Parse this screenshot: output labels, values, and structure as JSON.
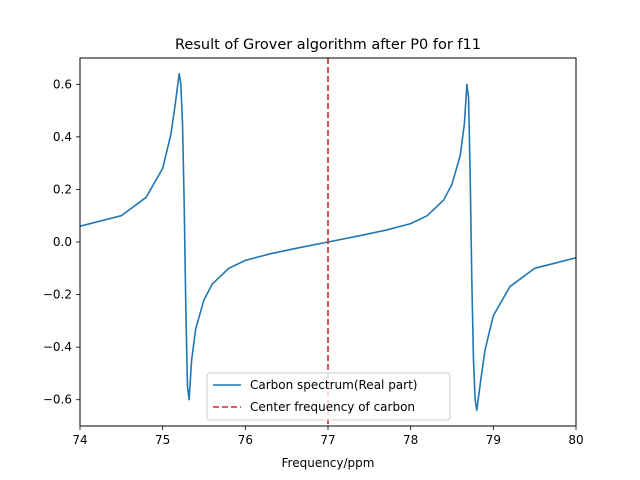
{
  "chart_data": {
    "type": "line",
    "title": "Result of Grover algorithm after P0 for f11",
    "xlabel": "Frequency/ppm",
    "ylabel": "",
    "xlim": [
      74,
      80
    ],
    "ylim": [
      -0.7,
      0.7
    ],
    "x_ticks": [
      74,
      75,
      76,
      77,
      78,
      79,
      80
    ],
    "y_ticks": [
      -0.6,
      -0.4,
      -0.2,
      0.0,
      0.2,
      0.4,
      0.6
    ],
    "grid": false,
    "legend_position": "lower center",
    "series": [
      {
        "name": "Carbon spectrum(Real part)",
        "color": "#1f77b4",
        "style": "solid",
        "x": [
          74.0,
          74.5,
          74.8,
          75.0,
          75.1,
          75.15,
          75.2,
          75.22,
          75.24,
          75.26,
          75.28,
          75.3,
          75.32,
          75.35,
          75.4,
          75.5,
          75.6,
          75.8,
          76.0,
          76.3,
          76.6,
          77.0,
          77.4,
          77.7,
          78.0,
          78.2,
          78.4,
          78.5,
          78.6,
          78.65,
          78.68,
          78.7,
          78.72,
          78.74,
          78.76,
          78.78,
          78.8,
          78.85,
          78.9,
          79.0,
          79.2,
          79.5,
          80.0
        ],
        "y": [
          0.06,
          0.1,
          0.17,
          0.28,
          0.41,
          0.52,
          0.64,
          0.6,
          0.45,
          0.15,
          -0.25,
          -0.55,
          -0.6,
          -0.45,
          -0.33,
          -0.22,
          -0.16,
          -0.1,
          -0.07,
          -0.045,
          -0.025,
          0.0,
          0.025,
          0.045,
          0.07,
          0.1,
          0.16,
          0.22,
          0.33,
          0.45,
          0.6,
          0.55,
          0.25,
          -0.15,
          -0.45,
          -0.6,
          -0.64,
          -0.52,
          -0.41,
          -0.28,
          -0.17,
          -0.1,
          -0.06
        ]
      }
    ],
    "vlines": [
      {
        "name": "Center frequency of carbon",
        "x": 77,
        "color": "#d62728",
        "style": "dashed"
      }
    ]
  }
}
